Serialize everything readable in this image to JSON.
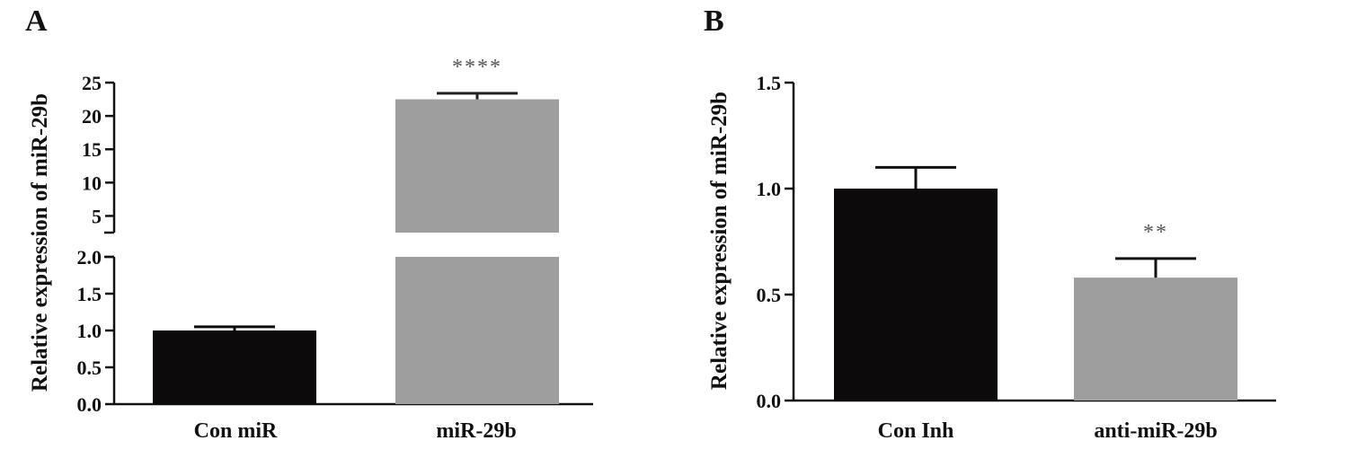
{
  "chart_data": [
    {
      "panel": "A",
      "type": "bar",
      "ylabel": "Relative expression of miR-29b",
      "categories": [
        "Con miR",
        "miR-29b"
      ],
      "values": [
        1.0,
        22.5
      ],
      "errors": [
        0.05,
        0.9
      ],
      "colors": [
        "#0d0a0b",
        "#9e9e9e"
      ],
      "significance": [
        "",
        "****"
      ],
      "broken_axis": true,
      "lower_ylim": [
        0,
        2
      ],
      "lower_ticks": [
        "0.0",
        "0.5",
        "1.0",
        "1.5",
        "2.0"
      ],
      "upper_ylim": [
        2.5,
        25
      ],
      "upper_ticks": [
        "5",
        "10",
        "15",
        "20",
        "25"
      ]
    },
    {
      "panel": "B",
      "type": "bar",
      "ylabel": "Relative expression of miR-29b",
      "categories": [
        "Con Inh",
        "anti-miR-29b"
      ],
      "values": [
        1.0,
        0.58
      ],
      "errors": [
        0.1,
        0.09
      ],
      "colors": [
        "#0d0a0b",
        "#9e9e9e"
      ],
      "significance": [
        "",
        "**"
      ],
      "ylim": [
        0,
        1.5
      ],
      "ticks": [
        "0.0",
        "0.5",
        "1.0",
        "1.5"
      ]
    }
  ]
}
